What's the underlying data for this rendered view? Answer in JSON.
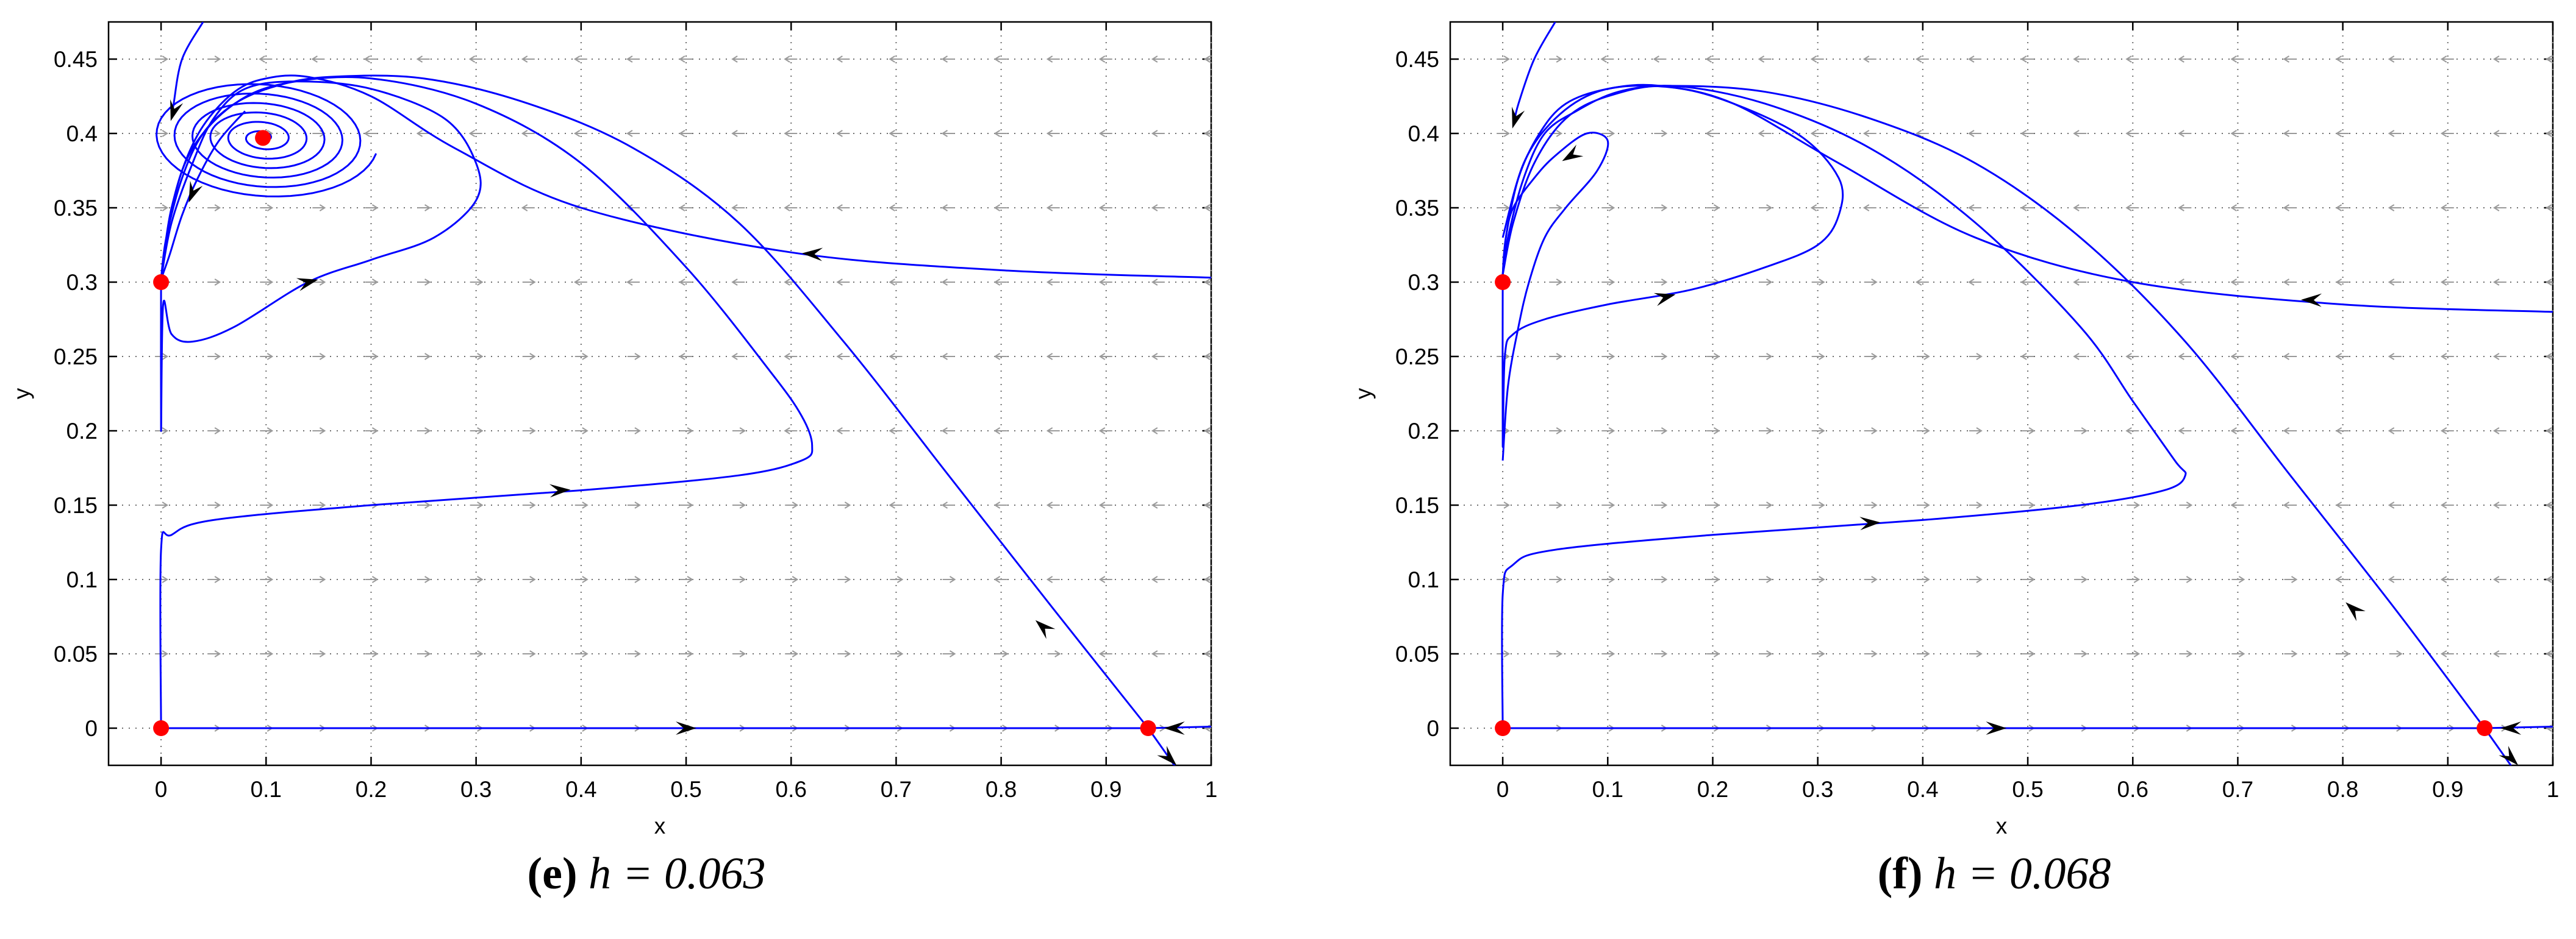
{
  "chart_data": [
    {
      "type": "scatter",
      "subplot": "e",
      "caption": {
        "letter": "(e)",
        "math": "h = 0.063"
      },
      "xlabel": "x",
      "ylabel": "y",
      "xlim": [
        -0.05,
        1.0
      ],
      "ylim": [
        -0.025,
        0.475
      ],
      "xticks": [
        "0",
        "0.1",
        "0.2",
        "0.3",
        "0.4",
        "0.5",
        "0.6",
        "0.7",
        "0.8",
        "0.9",
        "1"
      ],
      "yticks": [
        "0",
        "0.05",
        "0.1",
        "0.15",
        "0.2",
        "0.25",
        "0.3",
        "0.35",
        "0.4",
        "0.45"
      ],
      "grid": true,
      "equilibria": [
        {
          "x": 0,
          "y": 0
        },
        {
          "x": 0,
          "y": 0.3
        },
        {
          "x": 0.94,
          "y": 0
        },
        {
          "x": 0.097,
          "y": 0.397
        }
      ],
      "trajectories": [
        [
          [
            0.04,
            0.475
          ],
          [
            0.02,
            0.45
          ],
          [
            0.012,
            0.42
          ],
          [
            0.01,
            0.41
          ]
        ],
        [
          [
            0.08,
            0.415
          ],
          [
            0.055,
            0.395
          ],
          [
            0.035,
            0.37
          ],
          [
            0.02,
            0.345
          ],
          [
            0.008,
            0.318
          ],
          [
            0.0,
            0.302
          ]
        ],
        [
          [
            1.0,
            0.303
          ],
          [
            0.8,
            0.308
          ],
          [
            0.6,
            0.32
          ],
          [
            0.4,
            0.35
          ],
          [
            0.28,
            0.39
          ],
          [
            0.2,
            0.425
          ],
          [
            0.14,
            0.438
          ],
          [
            0.1,
            0.437
          ],
          [
            0.07,
            0.428
          ],
          [
            0.04,
            0.405
          ],
          [
            0.02,
            0.375
          ],
          [
            0.008,
            0.34
          ],
          [
            0.0,
            0.302
          ]
        ],
        [
          [
            0.94,
            0.0
          ],
          [
            0.85,
            0.08
          ],
          [
            0.75,
            0.17
          ],
          [
            0.65,
            0.26
          ],
          [
            0.55,
            0.34
          ],
          [
            0.45,
            0.39
          ],
          [
            0.35,
            0.42
          ],
          [
            0.25,
            0.437
          ],
          [
            0.16,
            0.438
          ],
          [
            0.11,
            0.432
          ],
          [
            0.07,
            0.42
          ],
          [
            0.04,
            0.4
          ],
          [
            0.02,
            0.37
          ],
          [
            0.005,
            0.33
          ],
          [
            0.0,
            0.302
          ]
        ],
        [
          [
            0.0,
            0.3
          ],
          [
            0.0,
            0.2
          ],
          [
            0.002,
            0.285
          ],
          [
            0.01,
            0.265
          ],
          [
            0.03,
            0.26
          ],
          [
            0.07,
            0.27
          ],
          [
            0.14,
            0.3
          ],
          [
            0.2,
            0.315
          ],
          [
            0.26,
            0.33
          ],
          [
            0.3,
            0.355
          ],
          [
            0.3,
            0.38
          ],
          [
            0.27,
            0.41
          ],
          [
            0.2,
            0.43
          ],
          [
            0.13,
            0.435
          ],
          [
            0.08,
            0.43
          ],
          [
            0.05,
            0.41
          ],
          [
            0.03,
            0.38
          ],
          [
            0.01,
            0.34
          ],
          [
            0.0,
            0.302
          ]
        ],
        [
          [
            0.0,
            0.0
          ],
          [
            0.0,
            0.12
          ],
          [
            0.01,
            0.13
          ],
          [
            0.05,
            0.14
          ],
          [
            0.2,
            0.15
          ],
          [
            0.4,
            0.16
          ],
          [
            0.55,
            0.17
          ],
          [
            0.61,
            0.18
          ],
          [
            0.62,
            0.19
          ],
          [
            0.61,
            0.21
          ],
          [
            0.58,
            0.24
          ],
          [
            0.5,
            0.31
          ],
          [
            0.4,
            0.38
          ],
          [
            0.3,
            0.42
          ],
          [
            0.2,
            0.437
          ],
          [
            0.12,
            0.434
          ],
          [
            0.07,
            0.42
          ],
          [
            0.03,
            0.39
          ],
          [
            0.01,
            0.35
          ],
          [
            0.0,
            0.302
          ]
        ],
        [
          [
            0.0,
            0.0
          ],
          [
            0.94,
            0.0
          ]
        ],
        [
          [
            0.94,
            0.0
          ],
          [
            0.97,
            -0.03
          ]
        ],
        [
          [
            1.0,
            0.001
          ],
          [
            0.94,
            0.0
          ]
        ]
      ],
      "spiral_center": [
        0.097,
        0.397
      ],
      "arrows": [
        {
          "x": 0.012,
          "y": 0.415,
          "dx": -0.3,
          "dy": -1
        },
        {
          "x": 0.03,
          "y": 0.36,
          "dx": -0.4,
          "dy": -1
        },
        {
          "x": 0.62,
          "y": 0.319,
          "dx": -1,
          "dy": 0.05
        },
        {
          "x": 0.14,
          "y": 0.3,
          "dx": 1,
          "dy": 0.25
        },
        {
          "x": 0.38,
          "y": 0.16,
          "dx": 1,
          "dy": 0.05
        },
        {
          "x": 0.5,
          "y": 0.0,
          "dx": 1,
          "dy": 0
        },
        {
          "x": 0.84,
          "y": 0.068,
          "dx": -1,
          "dy": 0.9
        },
        {
          "x": 0.96,
          "y": -0.02,
          "dx": 0.8,
          "dy": -0.8
        },
        {
          "x": 0.965,
          "y": 0.0,
          "dx": -1,
          "dy": 0
        }
      ]
    },
    {
      "type": "scatter",
      "subplot": "f",
      "caption": {
        "letter": "(f)",
        "math": "h = 0.068"
      },
      "xlabel": "x",
      "ylabel": "y",
      "xlim": [
        -0.05,
        1.0
      ],
      "ylim": [
        -0.025,
        0.475
      ],
      "xticks": [
        "0",
        "0.1",
        "0.2",
        "0.3",
        "0.4",
        "0.5",
        "0.6",
        "0.7",
        "0.8",
        "0.9",
        "1"
      ],
      "yticks": [
        "0",
        "0.05",
        "0.1",
        "0.15",
        "0.2",
        "0.25",
        "0.3",
        "0.35",
        "0.4",
        "0.45"
      ],
      "grid": true,
      "equilibria": [
        {
          "x": 0,
          "y": 0
        },
        {
          "x": 0,
          "y": 0.3
        },
        {
          "x": 0.935,
          "y": 0
        }
      ],
      "trajectories": [
        [
          [
            0.05,
            0.475
          ],
          [
            0.03,
            0.45
          ],
          [
            0.015,
            0.42
          ],
          [
            0.01,
            0.405
          ]
        ],
        [
          [
            1.0,
            0.28
          ],
          [
            0.8,
            0.285
          ],
          [
            0.6,
            0.3
          ],
          [
            0.45,
            0.33
          ],
          [
            0.32,
            0.38
          ],
          [
            0.22,
            0.42
          ],
          [
            0.15,
            0.432
          ],
          [
            0.1,
            0.43
          ],
          [
            0.06,
            0.42
          ],
          [
            0.035,
            0.4
          ],
          [
            0.015,
            0.37
          ],
          [
            0.003,
            0.33
          ],
          [
            0.0,
            0.305
          ]
        ],
        [
          [
            0.935,
            0.0
          ],
          [
            0.85,
            0.08
          ],
          [
            0.75,
            0.17
          ],
          [
            0.65,
            0.26
          ],
          [
            0.55,
            0.33
          ],
          [
            0.45,
            0.38
          ],
          [
            0.35,
            0.41
          ],
          [
            0.25,
            0.428
          ],
          [
            0.16,
            0.432
          ],
          [
            0.11,
            0.428
          ],
          [
            0.07,
            0.415
          ],
          [
            0.04,
            0.4
          ],
          [
            0.02,
            0.37
          ],
          [
            0.005,
            0.33
          ],
          [
            0.0,
            0.305
          ]
        ],
        [
          [
            0.0,
            0.305
          ],
          [
            0.003,
            0.33
          ],
          [
            0.01,
            0.35
          ],
          [
            0.03,
            0.37
          ],
          [
            0.05,
            0.385
          ],
          [
            0.08,
            0.4
          ],
          [
            0.1,
            0.395
          ],
          [
            0.09,
            0.375
          ],
          [
            0.06,
            0.35
          ],
          [
            0.04,
            0.33
          ],
          [
            0.025,
            0.3
          ],
          [
            0.015,
            0.27
          ],
          [
            0.005,
            0.23
          ],
          [
            0.0,
            0.18
          ]
        ],
        [
          [
            0.0,
            0.3
          ],
          [
            0.0,
            0.19
          ],
          [
            0.002,
            0.25
          ],
          [
            0.01,
            0.265
          ],
          [
            0.04,
            0.275
          ],
          [
            0.1,
            0.285
          ],
          [
            0.18,
            0.295
          ],
          [
            0.25,
            0.31
          ],
          [
            0.3,
            0.325
          ],
          [
            0.32,
            0.345
          ],
          [
            0.32,
            0.37
          ],
          [
            0.28,
            0.4
          ],
          [
            0.2,
            0.425
          ],
          [
            0.14,
            0.432
          ],
          [
            0.09,
            0.428
          ],
          [
            0.05,
            0.41
          ],
          [
            0.02,
            0.38
          ],
          [
            0.0,
            0.33
          ]
        ],
        [
          [
            0.0,
            0.0
          ],
          [
            0.0,
            0.09
          ],
          [
            0.01,
            0.11
          ],
          [
            0.05,
            0.12
          ],
          [
            0.2,
            0.13
          ],
          [
            0.4,
            0.14
          ],
          [
            0.55,
            0.15
          ],
          [
            0.63,
            0.16
          ],
          [
            0.65,
            0.17
          ],
          [
            0.64,
            0.18
          ],
          [
            0.6,
            0.22
          ],
          [
            0.55,
            0.27
          ],
          [
            0.45,
            0.34
          ],
          [
            0.35,
            0.39
          ],
          [
            0.25,
            0.42
          ],
          [
            0.16,
            0.432
          ],
          [
            0.1,
            0.425
          ],
          [
            0.06,
            0.41
          ],
          [
            0.03,
            0.38
          ],
          [
            0.01,
            0.34
          ],
          [
            0.0,
            0.305
          ]
        ],
        [
          [
            0.0,
            0.0
          ],
          [
            0.935,
            0.0
          ]
        ],
        [
          [
            0.935,
            0.0
          ],
          [
            0.965,
            -0.03
          ]
        ],
        [
          [
            1.0,
            0.001
          ],
          [
            0.935,
            0.0
          ]
        ]
      ],
      "spiral_center": null,
      "arrows": [
        {
          "x": 0.012,
          "y": 0.41,
          "dx": -0.3,
          "dy": -1
        },
        {
          "x": 0.065,
          "y": 0.385,
          "dx": -1,
          "dy": -0.6
        },
        {
          "x": 0.155,
          "y": 0.29,
          "dx": 1,
          "dy": 0.25
        },
        {
          "x": 0.77,
          "y": 0.288,
          "dx": -1,
          "dy": 0.02
        },
        {
          "x": 0.35,
          "y": 0.138,
          "dx": 1,
          "dy": 0.05
        },
        {
          "x": 0.47,
          "y": 0.0,
          "dx": 1,
          "dy": 0
        },
        {
          "x": 0.81,
          "y": 0.08,
          "dx": -1,
          "dy": 0.9
        },
        {
          "x": 0.96,
          "y": -0.02,
          "dx": 0.8,
          "dy": -0.8
        },
        {
          "x": 0.96,
          "y": 0.0,
          "dx": -1,
          "dy": 0
        }
      ]
    }
  ],
  "colors": {
    "trajectory": "#0000ff",
    "arrowhead": "#000000",
    "equilibrium": "#ff0000",
    "field_arrow": "#9a9a9a",
    "grid": "#6f6f6f"
  }
}
